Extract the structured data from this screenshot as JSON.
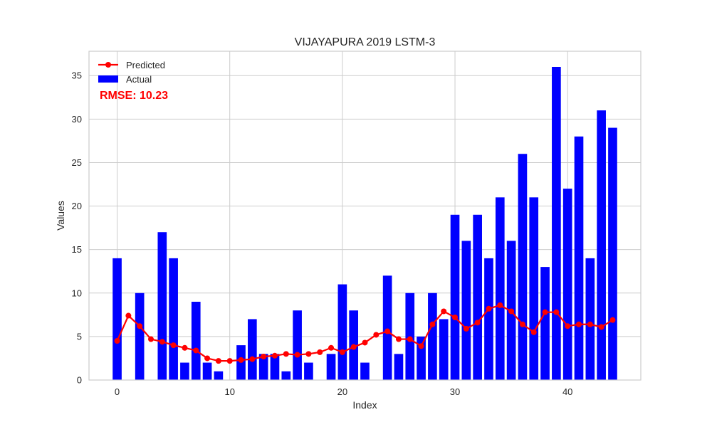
{
  "chart_data": {
    "type": "bar",
    "title": "VIJAYAPURA 2019 LSTM-3",
    "xlabel": "Index",
    "ylabel": "Values",
    "xlim": [
      -2.5,
      46.5
    ],
    "ylim": [
      0,
      37.8
    ],
    "xticks": [
      0,
      10,
      20,
      30,
      40
    ],
    "yticks": [
      0,
      5,
      10,
      15,
      20,
      25,
      30,
      35
    ],
    "grid": true,
    "legend_position": "top-left",
    "x": [
      0,
      1,
      2,
      3,
      4,
      5,
      6,
      7,
      8,
      9,
      10,
      11,
      12,
      13,
      14,
      15,
      16,
      17,
      18,
      19,
      20,
      21,
      22,
      23,
      24,
      25,
      26,
      27,
      28,
      29,
      30,
      31,
      32,
      33,
      34,
      35,
      36,
      37,
      38,
      39,
      40,
      41,
      42,
      43,
      44
    ],
    "series": [
      {
        "name": "Actual",
        "kind": "bar",
        "color": "#0000ff",
        "values": [
          14,
          0,
          10,
          0,
          17,
          14,
          2,
          9,
          2,
          1,
          0,
          4,
          7,
          3,
          3,
          1,
          8,
          2,
          0,
          3,
          11,
          8,
          2,
          0,
          12,
          3,
          10,
          5,
          10,
          7,
          19,
          16,
          19,
          14,
          21,
          16,
          26,
          21,
          13,
          36,
          22,
          28,
          14,
          31,
          29
        ]
      },
      {
        "name": "Predicted",
        "kind": "line",
        "color": "#ff0000",
        "values": [
          4.5,
          7.4,
          6.2,
          4.7,
          4.4,
          4.0,
          3.7,
          3.4,
          2.5,
          2.2,
          2.2,
          2.3,
          2.4,
          2.7,
          2.8,
          3.0,
          2.9,
          3.0,
          3.2,
          3.7,
          3.2,
          3.8,
          4.3,
          5.2,
          5.6,
          4.7,
          4.7,
          3.9,
          6.4,
          7.9,
          7.2,
          5.9,
          6.6,
          8.2,
          8.6,
          7.9,
          6.4,
          5.5,
          7.8,
          7.8,
          6.2,
          6.4,
          6.4,
          6.1,
          6.9
        ]
      }
    ],
    "annotation": {
      "text": "RMSE: 10.23",
      "color": "#ff0000"
    },
    "colors": {
      "background": "#ffffff",
      "grid": "#cccccc",
      "frame": "#cccccc"
    }
  }
}
